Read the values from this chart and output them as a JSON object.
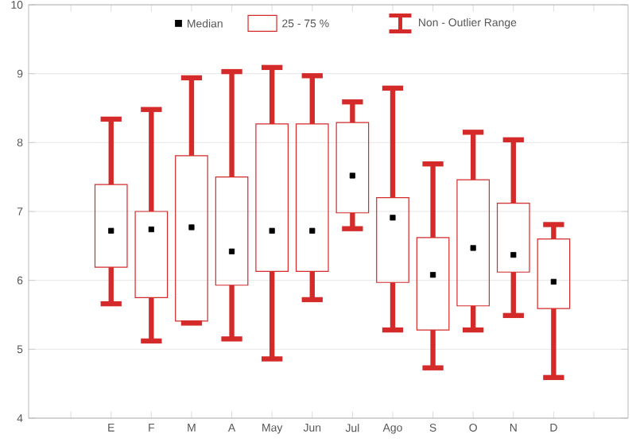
{
  "chart_data": {
    "type": "box",
    "categories": [
      null,
      "E",
      "F",
      "M",
      "A",
      "May",
      "Jun",
      "Jul",
      "Ago",
      "S",
      "O",
      "N",
      "D",
      null
    ],
    "boxes": [
      null,
      {
        "low": 5.66,
        "q1": 6.19,
        "median": 6.72,
        "q3": 7.39,
        "high": 8.34
      },
      {
        "low": 5.12,
        "q1": 5.75,
        "median": 6.74,
        "q3": 7.0,
        "high": 8.48
      },
      {
        "low": 5.38,
        "q1": 5.41,
        "median": 6.77,
        "q3": 7.81,
        "high": 8.94
      },
      {
        "low": 5.15,
        "q1": 5.93,
        "median": 6.42,
        "q3": 7.5,
        "high": 9.03
      },
      {
        "low": 4.86,
        "q1": 6.13,
        "median": 6.72,
        "q3": 8.27,
        "high": 9.09
      },
      {
        "low": 5.72,
        "q1": 6.13,
        "median": 6.72,
        "q3": 8.27,
        "high": 8.97
      },
      {
        "low": 6.75,
        "q1": 6.98,
        "median": 7.52,
        "q3": 8.29,
        "high": 8.59
      },
      {
        "low": 5.28,
        "q1": 5.97,
        "median": 6.91,
        "q3": 7.2,
        "high": 8.79
      },
      {
        "low": 4.73,
        "q1": 5.28,
        "median": 6.08,
        "q3": 6.62,
        "high": 7.69
      },
      {
        "low": 5.28,
        "q1": 5.63,
        "median": 6.47,
        "q3": 7.46,
        "high": 8.15
      },
      {
        "low": 5.49,
        "q1": 6.12,
        "median": 6.37,
        "q3": 7.12,
        "high": 8.04
      },
      {
        "low": 4.59,
        "q1": 5.59,
        "median": 5.98,
        "q3": 6.6,
        "high": 6.81
      },
      null
    ],
    "color": "#d42a2a",
    "ylim": [
      4,
      10
    ],
    "yticks": [
      4,
      5,
      6,
      7,
      8,
      9,
      10
    ],
    "grid": "y",
    "annotations": [
      "Median",
      "25 - 75 %",
      "Non - Outlier Range"
    ]
  }
}
